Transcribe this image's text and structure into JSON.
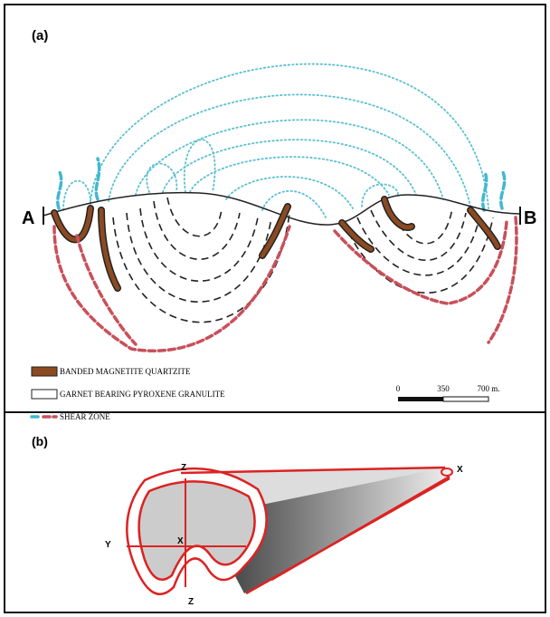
{
  "panel_a": {
    "label": "(a)",
    "section_start": "A",
    "section_end": "B",
    "legend": [
      "BANDED MAGNETITE QUARTZITE",
      "GARNET BEARING PYROXENE GRANULITE",
      "SHEAR ZONE"
    ],
    "scale": [
      "0",
      "350",
      "700 m."
    ]
  },
  "panel_b": {
    "label": "(b)",
    "z_top": "Z",
    "x_tip": "X",
    "y_axis": "Y",
    "x_center": "X",
    "z_bottom": "Z"
  }
}
